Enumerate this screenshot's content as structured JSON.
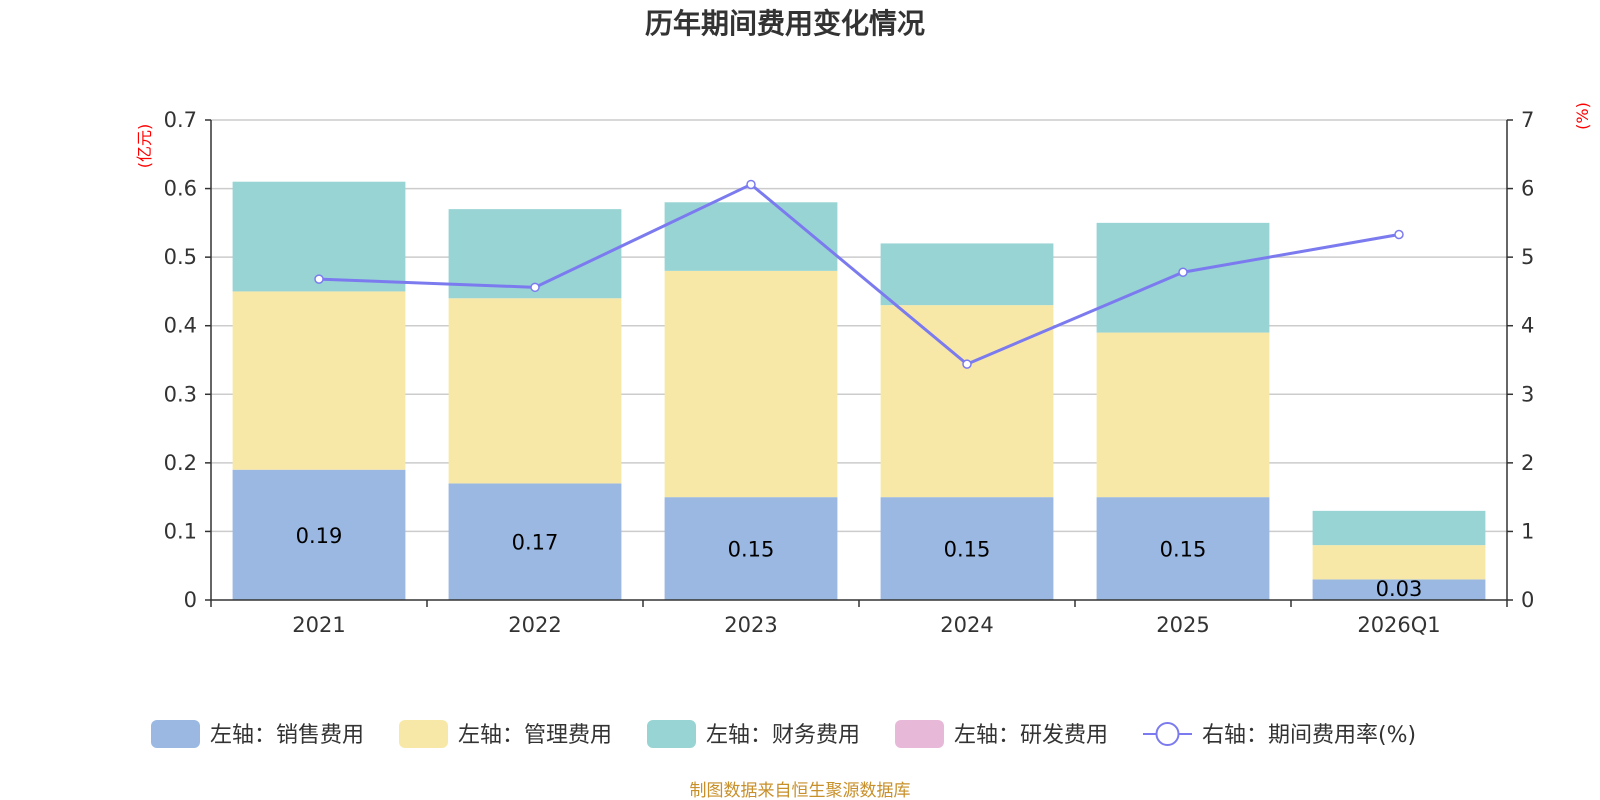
{
  "chart_data": {
    "type": "bar",
    "title": "历年期间费用变化情况",
    "categories": [
      "2021",
      "2022",
      "2023",
      "2024",
      "2025",
      "2026Q1"
    ],
    "stacked": true,
    "series": [
      {
        "name": "左轴：销售费用",
        "axis": "left",
        "color": "#9bb8e2",
        "values": [
          0.19,
          0.17,
          0.15,
          0.15,
          0.15,
          0.03
        ],
        "data_labels": [
          "0.19",
          "0.17",
          "0.15",
          "0.15",
          "0.15",
          "0.03"
        ]
      },
      {
        "name": "左轴：管理费用",
        "axis": "left",
        "color": "#f8e8a8",
        "values": [
          0.26,
          0.27,
          0.33,
          0.28,
          0.24,
          0.05
        ]
      },
      {
        "name": "左轴：财务费用",
        "axis": "left",
        "color": "#98d4d4",
        "values": [
          0.16,
          0.13,
          0.1,
          0.09,
          0.16,
          0.05
        ]
      },
      {
        "name": "左轴：研发费用",
        "axis": "left",
        "color": "#e8b8d8",
        "values": [
          0,
          0,
          0,
          0,
          0,
          0
        ]
      }
    ],
    "line_series": {
      "name": "右轴：期间费用率(%)",
      "axis": "right",
      "type": "line",
      "color": "#7b7bef",
      "values": [
        4.68,
        4.56,
        6.06,
        3.44,
        4.78,
        5.33
      ]
    },
    "ylabel_left": "(亿元)",
    "ylabel_right": "(%)",
    "ylim_left": [
      0,
      0.7
    ],
    "ylim_right": [
      0,
      7
    ],
    "yticks_left": [
      "0",
      "0.1",
      "0.2",
      "0.3",
      "0.4",
      "0.5",
      "0.6",
      "0.7"
    ],
    "yticks_right": [
      "0",
      "1",
      "2",
      "3",
      "4",
      "5",
      "6",
      "7"
    ],
    "grid": true,
    "legend_position": "bottom"
  },
  "source_note": "制图数据来自恒生聚源数据库"
}
